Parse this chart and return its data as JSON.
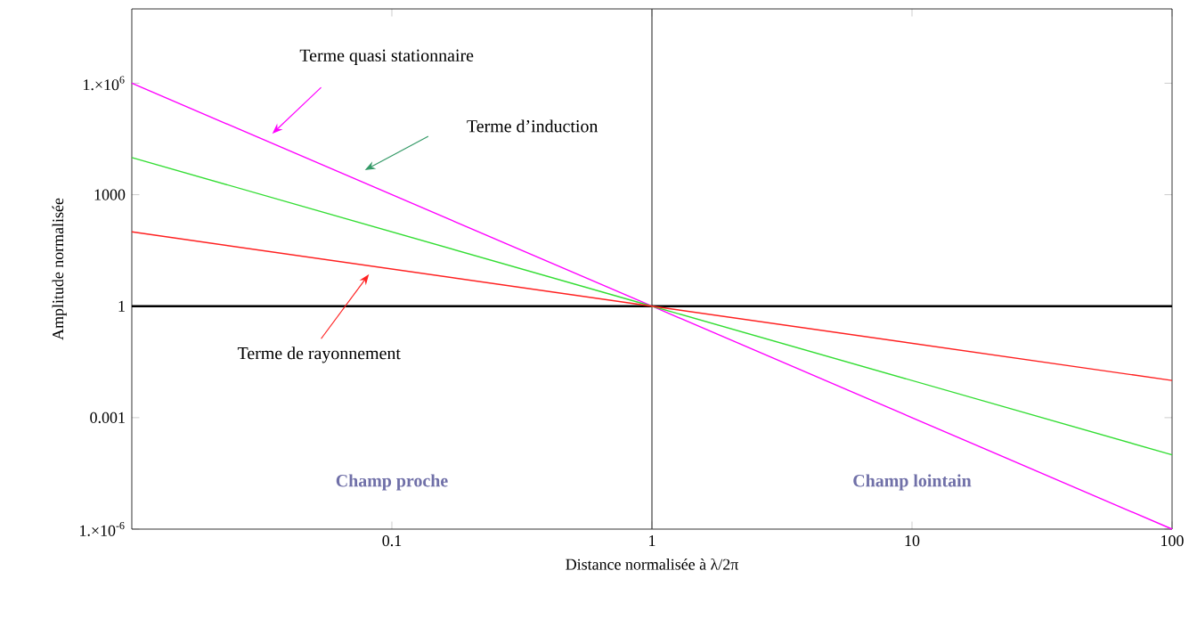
{
  "chart_data": {
    "type": "line",
    "log": "xy",
    "xlabel": "Distance normalisée à λ/2π",
    "ylabel": "Amplitude normalisée",
    "xlim": [
      0.01,
      100
    ],
    "ylim": [
      1e-06,
      100000000.0
    ],
    "xticks": [
      0.1,
      1,
      10,
      100
    ],
    "yticks": [
      {
        "value": 1e-06,
        "label": "1.×10$^{-6}$"
      },
      0.001,
      1,
      1000,
      {
        "value": 1000000.0,
        "label": "1.×10$^{6}$"
      }
    ],
    "series": [
      {
        "color": "#ff00ff",
        "x": [
          0.01,
          1,
          100
        ],
        "values": [
          1000000.0,
          1,
          1e-06
        ]
      },
      {
        "color": "#33dd33",
        "x": [
          0.01,
          1,
          100
        ],
        "values": [
          10000.0,
          1,
          0.0001
        ]
      },
      {
        "color": "#ff2020",
        "x": [
          0.01,
          1,
          100
        ],
        "values": [
          100,
          1,
          0.01
        ]
      }
    ],
    "ref_lines": [
      {
        "axis": "x",
        "value": 1
      },
      {
        "axis": "y",
        "value": 1
      }
    ],
    "annotations": [
      "Terme quasi stationnaire",
      "Terme d’induction",
      "Terme de rayonnement",
      "Champ proche",
      "Champ lointain"
    ],
    "grid": false,
    "marker": "none",
    "line_style": "solid"
  }
}
